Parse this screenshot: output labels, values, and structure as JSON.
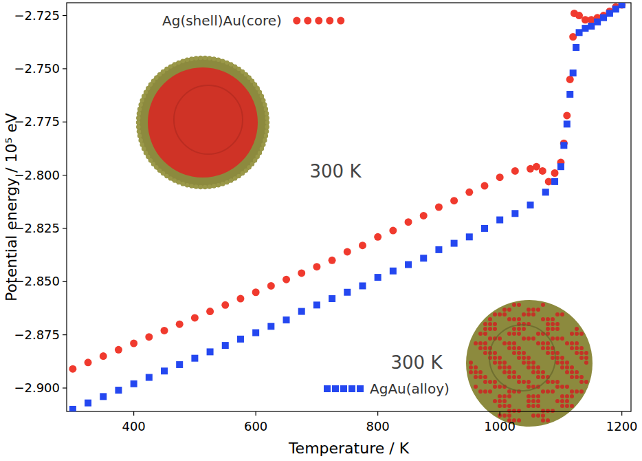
{
  "chart_data": {
    "type": "scatter",
    "x_label": "Temperature / K",
    "y_label": "Potential energy / 10⁵ eV",
    "xlim": [
      290,
      1215
    ],
    "ylim": [
      -2.911,
      -2.719
    ],
    "xticks": [
      400,
      600,
      800,
      1000,
      1200
    ],
    "yticks": [
      {
        "value": -2.725,
        "label": "−2.725"
      },
      {
        "value": -2.75,
        "label": "−2.750"
      },
      {
        "value": -2.775,
        "label": "−2.775"
      },
      {
        "value": -2.8,
        "label": "−2.800"
      },
      {
        "value": -2.825,
        "label": "−2.825"
      },
      {
        "value": -2.85,
        "label": "−2.850"
      },
      {
        "value": -2.875,
        "label": "−2.875"
      },
      {
        "value": -2.9,
        "label": "−2.900"
      }
    ],
    "grid": false,
    "legend": "inside",
    "annotations": [
      {
        "text": "300 K"
      },
      {
        "text": "300 K"
      }
    ],
    "series": [
      {
        "name": "Ag(shell)Au(core)",
        "color": "#f03a2e",
        "marker": "circle",
        "x": [
          300,
          325,
          350,
          375,
          400,
          425,
          450,
          475,
          500,
          525,
          550,
          575,
          600,
          625,
          650,
          675,
          700,
          725,
          750,
          775,
          800,
          825,
          850,
          875,
          900,
          925,
          950,
          975,
          1000,
          1025,
          1050,
          1060,
          1070,
          1080,
          1090,
          1100,
          1105,
          1110,
          1115,
          1120,
          1122,
          1130,
          1140,
          1150,
          1160,
          1170,
          1180,
          1190,
          1200
        ],
        "values": [
          -2.891,
          -2.888,
          -2.885,
          -2.882,
          -2.879,
          -2.876,
          -2.873,
          -2.87,
          -2.867,
          -2.864,
          -2.861,
          -2.858,
          -2.855,
          -2.852,
          -2.849,
          -2.846,
          -2.843,
          -2.84,
          -2.836,
          -2.833,
          -2.829,
          -2.826,
          -2.822,
          -2.819,
          -2.815,
          -2.812,
          -2.808,
          -2.805,
          -2.801,
          -2.798,
          -2.797,
          -2.796,
          -2.798,
          -2.803,
          -2.799,
          -2.794,
          -2.785,
          -2.772,
          -2.755,
          -2.735,
          -2.724,
          -2.725,
          -2.727,
          -2.727,
          -2.726,
          -2.725,
          -2.723,
          -2.721,
          -2.72
        ]
      },
      {
        "name": "AgAu(alloy)",
        "color": "#2447f0",
        "marker": "square",
        "x": [
          300,
          325,
          350,
          375,
          400,
          425,
          450,
          475,
          500,
          525,
          550,
          575,
          600,
          625,
          650,
          675,
          700,
          725,
          750,
          775,
          800,
          825,
          850,
          875,
          900,
          925,
          950,
          975,
          1000,
          1025,
          1050,
          1075,
          1090,
          1100,
          1105,
          1110,
          1115,
          1120,
          1125,
          1130,
          1140,
          1150,
          1160,
          1170,
          1180,
          1190,
          1200
        ],
        "values": [
          -2.91,
          -2.907,
          -2.904,
          -2.901,
          -2.898,
          -2.895,
          -2.892,
          -2.889,
          -2.886,
          -2.883,
          -2.88,
          -2.877,
          -2.874,
          -2.871,
          -2.868,
          -2.864,
          -2.861,
          -2.858,
          -2.855,
          -2.852,
          -2.848,
          -2.845,
          -2.842,
          -2.839,
          -2.835,
          -2.832,
          -2.829,
          -2.825,
          -2.821,
          -2.818,
          -2.814,
          -2.808,
          -2.803,
          -2.796,
          -2.786,
          -2.776,
          -2.762,
          -2.752,
          -2.74,
          -2.733,
          -2.731,
          -2.73,
          -2.728,
          -2.726,
          -2.724,
          -2.722,
          -2.72
        ]
      }
    ]
  }
}
